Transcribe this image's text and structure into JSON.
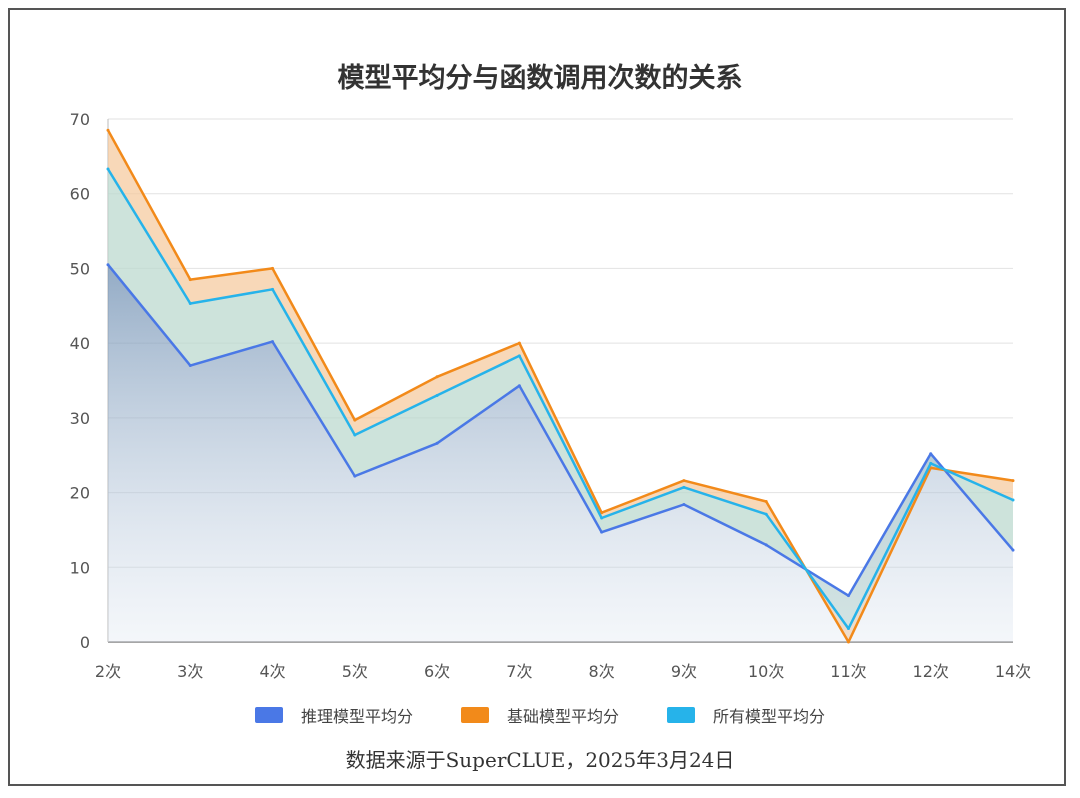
{
  "chart_data": {
    "type": "area",
    "title": "模型平均分与函数调用次数的关系",
    "categories": [
      "2次",
      "3次",
      "4次",
      "5次",
      "6次",
      "7次",
      "8次",
      "9次",
      "10次",
      "11次",
      "12次",
      "14次"
    ],
    "ylim": [
      0,
      70
    ],
    "yticks": [
      0,
      10,
      20,
      30,
      40,
      50,
      60,
      70
    ],
    "grid": true,
    "legend_position": "bottom",
    "series": [
      {
        "name": "推理模型平均分",
        "color": "#4a78e6",
        "values": [
          50.5,
          37,
          40.2,
          22.2,
          26.6,
          34.3,
          14.7,
          18.4,
          13,
          6.2,
          25.2,
          12.3
        ]
      },
      {
        "name": "基础模型平均分",
        "color": "#f28a1a",
        "values": [
          68.5,
          48.5,
          50,
          29.7,
          35.5,
          40,
          17.3,
          21.6,
          18.8,
          0,
          23.3,
          21.6
        ]
      },
      {
        "name": "所有模型平均分",
        "color": "#26b3ea",
        "values": [
          63.3,
          45.3,
          47.2,
          27.7,
          33,
          38.3,
          16.6,
          20.7,
          17.1,
          1.8,
          23.9,
          19
        ]
      }
    ]
  },
  "source_note": "数据来源于SuperCLUE，2025年3月24日"
}
